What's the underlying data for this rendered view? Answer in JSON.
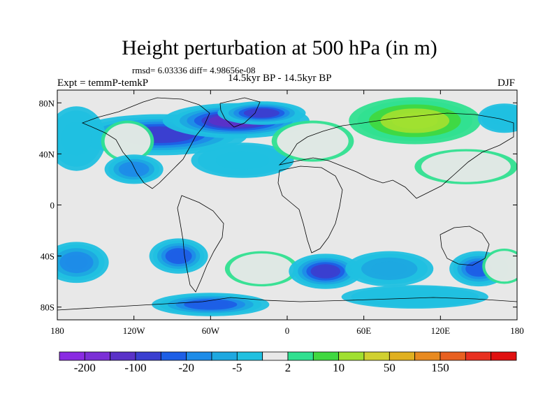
{
  "title": "Height perturbation at 500 hPa (in m)",
  "stats": "rmsd= 6.03336 diff= 4.98656e-08",
  "expt": "Expt = temmP-temkP",
  "period": "14.5kyr BP - 14.5kyr BP",
  "season": "DJF",
  "map": {
    "lon_range": [
      -180,
      180
    ],
    "lat_range": [
      -90,
      90
    ],
    "lon_ticks": [
      {
        "value": -180,
        "label": "180"
      },
      {
        "value": -120,
        "label": "120W"
      },
      {
        "value": -60,
        "label": "60W"
      },
      {
        "value": 0,
        "label": "0"
      },
      {
        "value": 60,
        "label": "60E"
      },
      {
        "value": 120,
        "label": "120E"
      },
      {
        "value": 180,
        "label": "180"
      }
    ],
    "lat_ticks": [
      {
        "value": 80,
        "label": "80N"
      },
      {
        "value": 40,
        "label": "40N"
      },
      {
        "value": 0,
        "label": "0"
      },
      {
        "value": -40,
        "label": "40S"
      },
      {
        "value": -80,
        "label": "80S"
      }
    ],
    "background_color": "#e8e8e8",
    "anomalies": [
      {
        "lon": -100,
        "lat": 55,
        "rx": 60,
        "ry": 14,
        "level": 3,
        "note": "N America trough"
      },
      {
        "lon": -40,
        "lat": 66,
        "rx": 50,
        "ry": 12,
        "level": 2,
        "note": "Greenland / N Atlantic trough"
      },
      {
        "lon": -20,
        "lat": 72,
        "rx": 30,
        "ry": 8,
        "level": 3
      },
      {
        "lon": -165,
        "lat": 52,
        "rx": 20,
        "ry": 22,
        "level": 7,
        "note": "N Pacific ridge west"
      },
      {
        "lon": -125,
        "lat": 50,
        "rx": 18,
        "ry": 14,
        "level": 8
      },
      {
        "lon": -35,
        "lat": 35,
        "rx": 35,
        "ry": 12,
        "level": 7
      },
      {
        "lon": 20,
        "lat": 50,
        "rx": 28,
        "ry": 14,
        "level": 8,
        "note": "Europe ridge"
      },
      {
        "lon": 100,
        "lat": 66,
        "rx": 45,
        "ry": 16,
        "level": 11,
        "note": "Siberian high"
      },
      {
        "lon": 140,
        "lat": 30,
        "rx": 35,
        "ry": 12,
        "level": 8
      },
      {
        "lon": 170,
        "lat": 68,
        "rx": 18,
        "ry": 10,
        "level": 7
      },
      {
        "lon": -120,
        "lat": 28,
        "rx": 20,
        "ry": 10,
        "level": 5
      },
      {
        "lon": -165,
        "lat": -45,
        "rx": 22,
        "ry": 14,
        "level": 5
      },
      {
        "lon": -85,
        "lat": -40,
        "rx": 20,
        "ry": 12,
        "level": 4
      },
      {
        "lon": -20,
        "lat": -50,
        "rx": 25,
        "ry": 12,
        "level": 8,
        "note": "S Atlantic ridge"
      },
      {
        "lon": 30,
        "lat": -52,
        "rx": 25,
        "ry": 12,
        "level": 3,
        "note": "S Indian trough"
      },
      {
        "lon": 80,
        "lat": -50,
        "rx": 30,
        "ry": 12,
        "level": 6
      },
      {
        "lon": 150,
        "lat": -50,
        "rx": 20,
        "ry": 12,
        "level": 4
      },
      {
        "lon": 170,
        "lat": -48,
        "rx": 15,
        "ry": 12,
        "level": 8
      },
      {
        "lon": -60,
        "lat": -78,
        "rx": 40,
        "ry": 8,
        "level": 4
      },
      {
        "lon": 100,
        "lat": -72,
        "rx": 50,
        "ry": 8,
        "level": 7
      }
    ]
  },
  "colorbar": {
    "colors": [
      "#8a2be2",
      "#7b2fd6",
      "#5a32c8",
      "#3a3fd0",
      "#1e5fe6",
      "#1e8ce8",
      "#1ea8e0",
      "#20c0e0",
      "#e8e8e8",
      "#30e090",
      "#40d840",
      "#a0e030",
      "#d0d030",
      "#e0b020",
      "#e88a20",
      "#e86020",
      "#e83020",
      "#e01010"
    ],
    "labels": [
      {
        "boundary": 1,
        "text": "-200"
      },
      {
        "boundary": 3,
        "text": "-100"
      },
      {
        "boundary": 5,
        "text": "-20"
      },
      {
        "boundary": 7,
        "text": "-5"
      },
      {
        "boundary": 9,
        "text": "2"
      },
      {
        "boundary": 11,
        "text": "10"
      },
      {
        "boundary": 13,
        "text": "50"
      },
      {
        "boundary": 15,
        "text": "150"
      }
    ]
  }
}
